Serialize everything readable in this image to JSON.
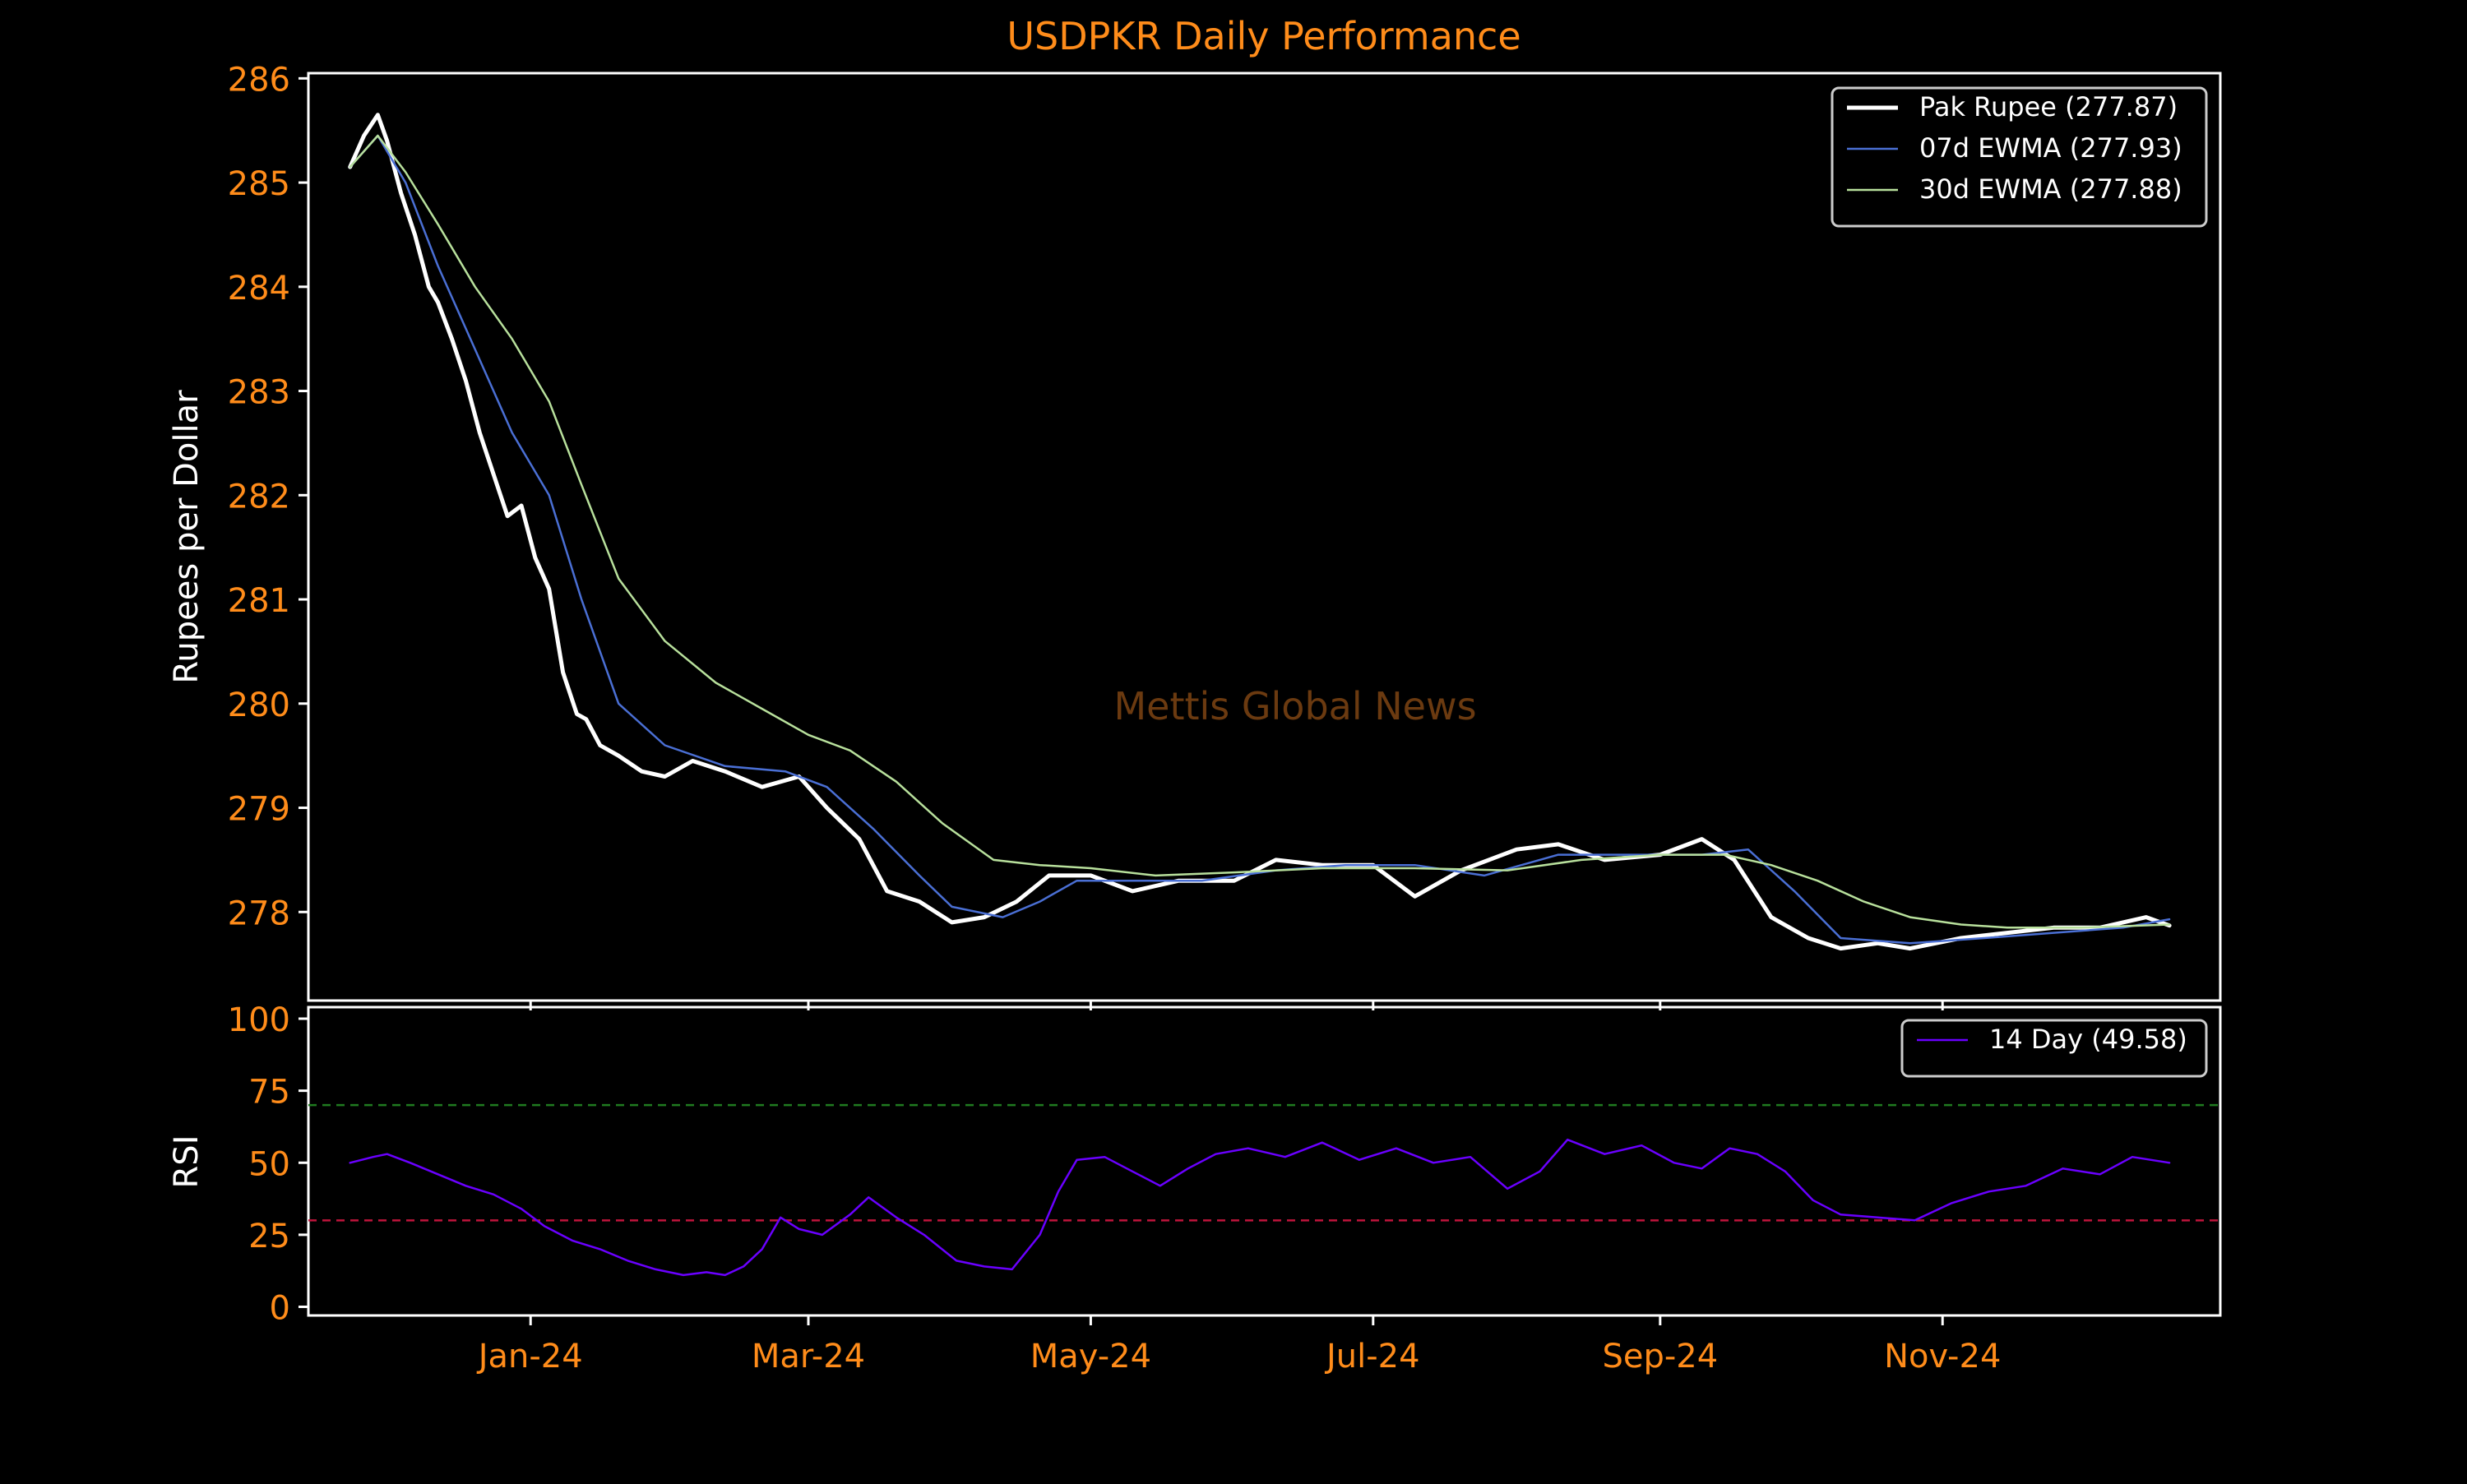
{
  "title": "USDPKR Daily Performance",
  "watermark": "Mettis Global News",
  "colors": {
    "background": "#000000",
    "accent": "#ff8c1a",
    "axis": "#ffffff",
    "price": "#ffffff",
    "ewma7": "#4a6fd4",
    "ewma30": "#b8e09c",
    "rsi": "#6a00ff",
    "overbought": "#1f7a1f",
    "oversold": "#c0143c",
    "watermark": "#6b3a10"
  },
  "chart_data": [
    {
      "type": "line",
      "name": "price-panel",
      "ylabel": "Rupees per Dollar",
      "ylim": [
        277.15,
        286.05
      ],
      "yticks": [
        286,
        285,
        284,
        283,
        282,
        281,
        280,
        279,
        278
      ],
      "xlim": [
        "2023-11-14",
        "2024-12-31"
      ],
      "legend": "top-right",
      "grid": false,
      "series": [
        {
          "name": "Pak Rupee (277.87)",
          "key": "price",
          "x": [
            "2023-11-23",
            "2023-11-26",
            "2023-11-29",
            "2023-12-01",
            "2023-12-04",
            "2023-12-07",
            "2023-12-10",
            "2023-12-12",
            "2023-12-15",
            "2023-12-18",
            "2023-12-21",
            "2023-12-24",
            "2023-12-27",
            "2023-12-30",
            "2024-01-02",
            "2024-01-05",
            "2024-01-08",
            "2024-01-11",
            "2024-01-13",
            "2024-01-16",
            "2024-01-20",
            "2024-01-25",
            "2024-01-30",
            "2024-02-05",
            "2024-02-12",
            "2024-02-20",
            "2024-02-28",
            "2024-03-05",
            "2024-03-12",
            "2024-03-18",
            "2024-03-25",
            "2024-04-01",
            "2024-04-08",
            "2024-04-15",
            "2024-04-22",
            "2024-05-01",
            "2024-05-10",
            "2024-05-20",
            "2024-06-01",
            "2024-06-10",
            "2024-06-20",
            "2024-07-01",
            "2024-07-10",
            "2024-07-20",
            "2024-08-01",
            "2024-08-10",
            "2024-08-20",
            "2024-09-01",
            "2024-09-10",
            "2024-09-17",
            "2024-09-25",
            "2024-10-03",
            "2024-10-10",
            "2024-10-18",
            "2024-10-25",
            "2024-11-05",
            "2024-11-15",
            "2024-11-25",
            "2024-12-05",
            "2024-12-15",
            "2024-12-20"
          ],
          "values": [
            285.15,
            285.45,
            285.65,
            285.4,
            284.9,
            284.5,
            284.0,
            283.85,
            283.5,
            283.1,
            282.6,
            282.2,
            281.8,
            281.9,
            281.4,
            281.1,
            280.3,
            279.9,
            279.85,
            279.6,
            279.5,
            279.35,
            279.3,
            279.45,
            279.35,
            279.2,
            279.3,
            279.0,
            278.7,
            278.2,
            278.1,
            277.9,
            277.95,
            278.1,
            278.35,
            278.35,
            278.2,
            278.3,
            278.3,
            278.5,
            278.45,
            278.45,
            278.15,
            278.4,
            278.6,
            278.65,
            278.5,
            278.55,
            278.7,
            278.5,
            277.95,
            277.75,
            277.65,
            277.7,
            277.65,
            277.75,
            277.8,
            277.85,
            277.85,
            277.95,
            277.87
          ]
        },
        {
          "name": "07d EWMA (277.93)",
          "key": "ewma7",
          "x": [
            "2023-11-23",
            "2023-11-29",
            "2023-12-05",
            "2023-12-12",
            "2023-12-20",
            "2023-12-28",
            "2024-01-05",
            "2024-01-12",
            "2024-01-20",
            "2024-01-30",
            "2024-02-12",
            "2024-02-25",
            "2024-03-05",
            "2024-03-15",
            "2024-03-25",
            "2024-04-01",
            "2024-04-12",
            "2024-04-20",
            "2024-04-28",
            "2024-05-10",
            "2024-05-25",
            "2024-06-10",
            "2024-06-25",
            "2024-07-10",
            "2024-07-25",
            "2024-08-10",
            "2024-08-25",
            "2024-09-10",
            "2024-09-20",
            "2024-09-30",
            "2024-10-10",
            "2024-10-25",
            "2024-11-10",
            "2024-11-25",
            "2024-12-10",
            "2024-12-20"
          ],
          "values": [
            285.15,
            285.45,
            285.0,
            284.2,
            283.4,
            282.6,
            282.0,
            281.0,
            280.0,
            279.6,
            279.4,
            279.35,
            279.2,
            278.8,
            278.35,
            278.05,
            277.95,
            278.1,
            278.3,
            278.3,
            278.3,
            278.4,
            278.45,
            278.45,
            278.35,
            278.55,
            278.55,
            278.55,
            278.6,
            278.2,
            277.75,
            277.7,
            277.75,
            277.8,
            277.85,
            277.93
          ]
        },
        {
          "name": "30d EWMA (277.88)",
          "key": "ewma30",
          "x": [
            "2023-11-23",
            "2023-11-29",
            "2023-12-05",
            "2023-12-12",
            "2023-12-20",
            "2023-12-28",
            "2024-01-05",
            "2024-01-12",
            "2024-01-20",
            "2024-01-30",
            "2024-02-10",
            "2024-02-20",
            "2024-03-01",
            "2024-03-10",
            "2024-03-20",
            "2024-03-30",
            "2024-04-10",
            "2024-04-20",
            "2024-05-01",
            "2024-05-15",
            "2024-06-01",
            "2024-06-20",
            "2024-07-10",
            "2024-07-30",
            "2024-08-15",
            "2024-09-01",
            "2024-09-15",
            "2024-09-25",
            "2024-10-05",
            "2024-10-15",
            "2024-10-25",
            "2024-11-05",
            "2024-11-15",
            "2024-12-01",
            "2024-12-20"
          ],
          "values": [
            285.15,
            285.45,
            285.1,
            284.6,
            284.0,
            283.5,
            282.9,
            282.1,
            281.2,
            280.6,
            280.2,
            279.95,
            279.7,
            279.55,
            279.25,
            278.85,
            278.5,
            278.45,
            278.42,
            278.35,
            278.38,
            278.42,
            278.42,
            278.4,
            278.5,
            278.55,
            278.55,
            278.45,
            278.3,
            278.1,
            277.95,
            277.88,
            277.85,
            277.85,
            277.88
          ]
        }
      ]
    },
    {
      "type": "line",
      "name": "rsi-panel",
      "ylabel": "RSI",
      "ylim": [
        -3,
        104
      ],
      "yticks": [
        100,
        75,
        50,
        25,
        0
      ],
      "xlim": [
        "2023-11-14",
        "2024-12-31"
      ],
      "xticks": [
        "Jan-24",
        "Mar-24",
        "May-24",
        "Jul-24",
        "Sep-24",
        "Nov-24"
      ],
      "xtick_dates": [
        "2024-01-01",
        "2024-03-01",
        "2024-05-01",
        "2024-07-01",
        "2024-09-01",
        "2024-11-01"
      ],
      "reference_lines": [
        {
          "key": "overbought",
          "value": 70
        },
        {
          "key": "oversold",
          "value": 30
        }
      ],
      "legend": "top-right",
      "grid": false,
      "series": [
        {
          "name": "14 Day (49.58)",
          "key": "rsi",
          "x": [
            "2023-11-23",
            "2023-11-28",
            "2023-12-01",
            "2023-12-06",
            "2023-12-12",
            "2023-12-18",
            "2023-12-24",
            "2023-12-30",
            "2024-01-04",
            "2024-01-10",
            "2024-01-16",
            "2024-01-22",
            "2024-01-28",
            "2024-02-03",
            "2024-02-08",
            "2024-02-12",
            "2024-02-16",
            "2024-02-20",
            "2024-02-24",
            "2024-02-28",
            "2024-03-04",
            "2024-03-10",
            "2024-03-14",
            "2024-03-20",
            "2024-03-26",
            "2024-04-02",
            "2024-04-08",
            "2024-04-14",
            "2024-04-20",
            "2024-04-24",
            "2024-04-28",
            "2024-05-04",
            "2024-05-10",
            "2024-05-16",
            "2024-05-22",
            "2024-05-28",
            "2024-06-04",
            "2024-06-12",
            "2024-06-20",
            "2024-06-28",
            "2024-07-06",
            "2024-07-14",
            "2024-07-22",
            "2024-07-30",
            "2024-08-06",
            "2024-08-12",
            "2024-08-20",
            "2024-08-28",
            "2024-09-04",
            "2024-09-10",
            "2024-09-16",
            "2024-09-22",
            "2024-09-28",
            "2024-10-04",
            "2024-10-10",
            "2024-10-18",
            "2024-10-26",
            "2024-11-03",
            "2024-11-11",
            "2024-11-19",
            "2024-11-27",
            "2024-12-05",
            "2024-12-12",
            "2024-12-20"
          ],
          "values": [
            50,
            52,
            53,
            50,
            46,
            42,
            39,
            34,
            28,
            23,
            20,
            16,
            13,
            11,
            12,
            11,
            14,
            20,
            31,
            27,
            25,
            32,
            38,
            31,
            25,
            16,
            14,
            13,
            25,
            40,
            51,
            52,
            47,
            42,
            48,
            53,
            55,
            52,
            57,
            51,
            55,
            50,
            52,
            41,
            47,
            58,
            53,
            56,
            50,
            48,
            55,
            53,
            47,
            37,
            32,
            31,
            30,
            36,
            40,
            42,
            48,
            46,
            52,
            50
          ]
        }
      ]
    }
  ]
}
